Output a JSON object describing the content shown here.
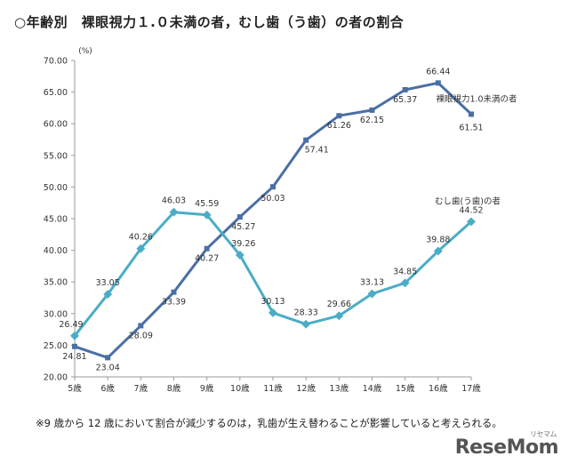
{
  "title": "○年齢別　裸眼視力１.０未満の者，むし歯（う歯）の者の割合",
  "footnote": "※9 歳から 12 歳において割合が減少するのは，乳歯が生え替わることが影響していると考えられる。",
  "logo": "ReseMom",
  "logo_small": "リセマム",
  "colors": {
    "vision": "#4a6fa5",
    "caries": "#4bacc6",
    "axis": "#999999",
    "text": "#333333"
  },
  "chart_data": {
    "type": "line",
    "ylabel": "(%)",
    "ylim": [
      20,
      70
    ],
    "yticks": [
      "20.00",
      "25.00",
      "30.00",
      "35.00",
      "40.00",
      "45.00",
      "50.00",
      "55.00",
      "60.00",
      "65.00",
      "70.00"
    ],
    "categories": [
      "5歳",
      "6歳",
      "7歳",
      "8歳",
      "9歳",
      "10歳",
      "11歳",
      "12歳",
      "13歳",
      "14歳",
      "15歳",
      "16歳",
      "17歳"
    ],
    "series": [
      {
        "name": "裸眼視力1.0未満の者",
        "key": "vision",
        "values": [
          24.81,
          23.04,
          28.09,
          33.39,
          40.27,
          45.27,
          50.03,
          57.41,
          61.26,
          62.15,
          65.37,
          66.44,
          61.51
        ],
        "labels": [
          "24.81",
          "23.04",
          "28.09",
          "33.39",
          "40.27",
          "45.27",
          "50.03",
          "57.41",
          "61.26",
          "62.15",
          "65.37",
          "66.44",
          "61.51"
        ]
      },
      {
        "name": "むし歯(う歯)の者",
        "key": "caries",
        "values": [
          26.49,
          33.05,
          40.26,
          46.03,
          45.59,
          39.26,
          30.13,
          28.33,
          29.66,
          33.13,
          34.85,
          39.88,
          44.52
        ],
        "labels": [
          "26.49",
          "33.05",
          "40.26",
          "46.03",
          "45.59",
          "39.26",
          "30.13",
          "28.33",
          "29.66",
          "33.13",
          "34.85",
          "39.88",
          "44.52"
        ]
      }
    ]
  }
}
